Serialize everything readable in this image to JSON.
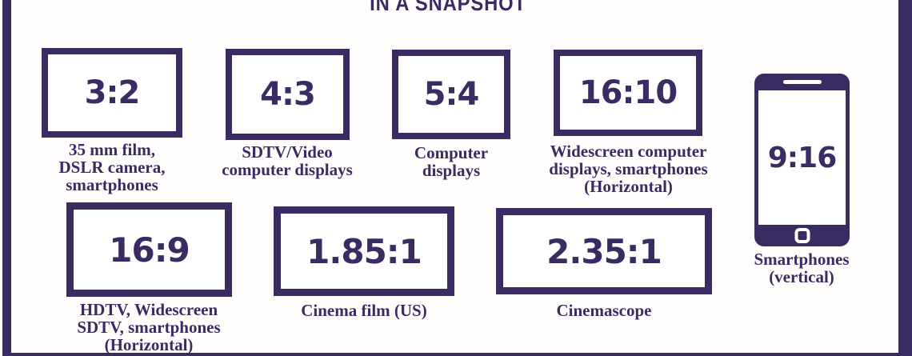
{
  "title": "IN A SNAPSHOT",
  "colors": {
    "purple": "#3a2b63",
    "background": "#fffefd"
  },
  "ratios": [
    {
      "value": "3:2",
      "label": "35 mm film,\nDSLR camera,\nsmartphones"
    },
    {
      "value": "4:3",
      "label": "SDTV/Video\ncomputer displays"
    },
    {
      "value": "5:4",
      "label": "Computer\ndisplays"
    },
    {
      "value": "16:10",
      "label": "Widescreen computer\ndisplays, smartphones\n(Horizontal)"
    },
    {
      "value": "16:9",
      "label": "HDTV, Widescreen\nSDTV, smartphones\n(Horizontal)"
    },
    {
      "value": "1.85:1",
      "label": "Cinema film (US)"
    },
    {
      "value": "2.35:1",
      "label": "Cinemascope"
    }
  ],
  "phone": {
    "value": "9:16",
    "label": "Smartphones\n(vertical)"
  }
}
